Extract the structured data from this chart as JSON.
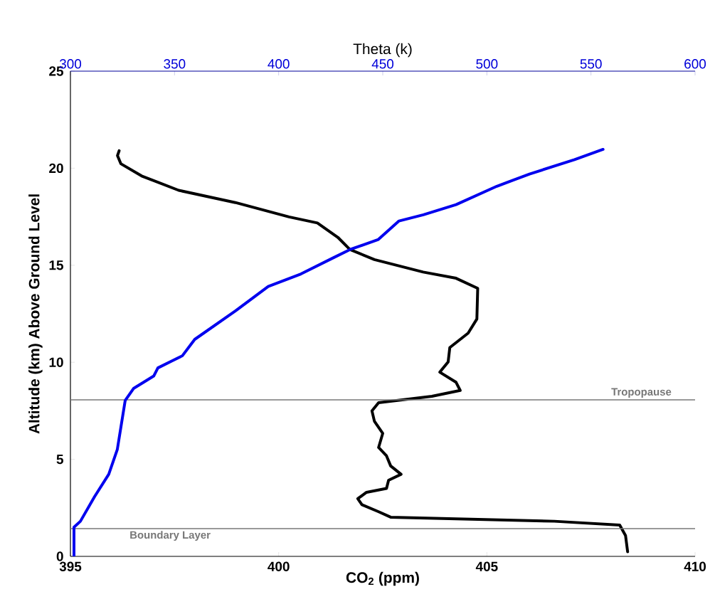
{
  "chart_data": {
    "type": "line",
    "xlabel": "CO$_{2}$ (ppm)",
    "x2label": "Theta (k)",
    "ylabel": "Altitude (km) Above Ground Level",
    "xlim": [
      395,
      410
    ],
    "xticks": [
      395,
      400,
      405,
      410
    ],
    "x2lim": [
      300,
      600
    ],
    "x2ticks": [
      300,
      350,
      400,
      450,
      500,
      550,
      600
    ],
    "ylim": [
      0,
      25
    ],
    "yticks": [
      0,
      5,
      10,
      15,
      20,
      25
    ],
    "grid": false,
    "marker": "none",
    "line_style": "solid",
    "series": [
      {
        "color": "#000000",
        "x": [
          408.38,
          408.33,
          408.19,
          406.62,
          402.69,
          402.4,
          402.0,
          401.9,
          402.11,
          402.59,
          402.64,
          402.94,
          402.69,
          402.59,
          402.4,
          402.5,
          402.3,
          402.24,
          402.4,
          403.68,
          404.36,
          404.26,
          403.87,
          404.07,
          404.11,
          404.55,
          404.76,
          404.78,
          404.26,
          403.47,
          402.3,
          401.71,
          401.42,
          400.93,
          400.25,
          398.96,
          397.6,
          396.71,
          396.21,
          396.13,
          396.17
        ],
        "values": [
          0.24,
          1.07,
          1.61,
          1.81,
          2.02,
          2.3,
          2.66,
          2.97,
          3.3,
          3.5,
          3.92,
          4.23,
          4.66,
          5.18,
          5.61,
          6.34,
          6.96,
          7.5,
          7.92,
          8.25,
          8.55,
          8.97,
          9.49,
          10.02,
          10.76,
          11.5,
          12.23,
          13.81,
          14.33,
          14.65,
          15.29,
          15.81,
          16.44,
          17.18,
          17.49,
          18.23,
          18.86,
          19.6,
          20.23,
          20.65,
          20.9
        ]
      },
      {
        "color": "#0000ee",
        "axis": "x2",
        "x": [
          301.7,
          301.7,
          304.8,
          311.6,
          318.4,
          322.5,
          326.3,
          330.3,
          340.0,
          342.0,
          353.8,
          359.7,
          379.3,
          395.0,
          410.7,
          426.4,
          434.3,
          447.9,
          457.8,
          469.5,
          485.2,
          504.8,
          520.5,
          542.1,
          555.8
        ],
        "values": [
          0.03,
          1.5,
          1.81,
          3.08,
          4.23,
          5.5,
          8.03,
          8.65,
          9.29,
          9.71,
          10.34,
          11.18,
          12.65,
          13.91,
          14.55,
          15.39,
          15.81,
          16.33,
          17.28,
          17.6,
          18.12,
          19.07,
          19.7,
          20.44,
          20.97
        ]
      }
    ],
    "ref_lines": [
      {
        "axis": "y",
        "value": 8.06,
        "label": "Tropopause",
        "color": "#777777"
      },
      {
        "axis": "y",
        "value": 1.43,
        "label": "Boundary Layer",
        "color": "#777777"
      }
    ]
  }
}
